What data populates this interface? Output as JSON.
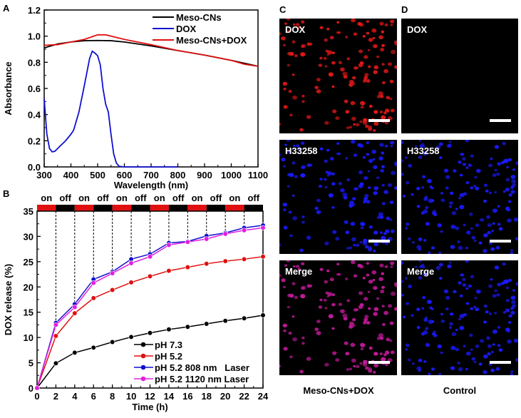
{
  "chart_data": [
    {
      "panel": "A",
      "type": "line",
      "xlabel": "Wavelength (nm)",
      "ylabel": "Absorbance",
      "xlim": [
        300,
        1100
      ],
      "ylim": [
        0,
        1.2
      ],
      "xticks": [
        300,
        400,
        500,
        600,
        700,
        800,
        900,
        1000,
        1100
      ],
      "yticks": [
        0.0,
        0.2,
        0.4,
        0.6,
        0.8,
        1.0,
        1.2
      ],
      "legend": "top-right",
      "series": [
        {
          "name": "Meso-CNs",
          "color": "#000000",
          "x": [
            300,
            350,
            400,
            450,
            500,
            550,
            600,
            700,
            800,
            900,
            1000,
            1100
          ],
          "y": [
            0.91,
            0.94,
            0.955,
            0.965,
            0.967,
            0.965,
            0.955,
            0.925,
            0.89,
            0.855,
            0.815,
            0.77
          ]
        },
        {
          "name": "DOX",
          "color": "#1010d0",
          "x": [
            300,
            310,
            320,
            330,
            340,
            360,
            380,
            400,
            410,
            430,
            450,
            470,
            480,
            490,
            500,
            510,
            520,
            530,
            540,
            550,
            560,
            570,
            580,
            600,
            700,
            800
          ],
          "y": [
            0.52,
            0.25,
            0.14,
            0.115,
            0.12,
            0.16,
            0.2,
            0.25,
            0.28,
            0.42,
            0.62,
            0.83,
            0.885,
            0.87,
            0.85,
            0.78,
            0.6,
            0.48,
            0.42,
            0.25,
            0.1,
            0.03,
            0.005,
            0,
            0,
            0
          ]
        },
        {
          "name": "Meso-CNs+DOX",
          "color": "#e01010",
          "x": [
            300,
            350,
            400,
            450,
            500,
            530,
            550,
            600,
            700,
            800,
            900,
            1000,
            1050,
            1100
          ],
          "y": [
            0.93,
            0.935,
            0.955,
            0.975,
            1.01,
            1.01,
            1.0,
            0.975,
            0.935,
            0.89,
            0.855,
            0.815,
            0.785,
            0.77
          ]
        }
      ]
    },
    {
      "panel": "B",
      "type": "line",
      "xlabel": "Time (h)",
      "ylabel": "DOX release (%)",
      "xlim": [
        0,
        24
      ],
      "ylim": [
        0,
        35
      ],
      "xticks": [
        0,
        2,
        4,
        6,
        8,
        10,
        12,
        14,
        16,
        18,
        20,
        22,
        24
      ],
      "yticks": [
        0,
        5,
        10,
        15,
        20,
        25,
        30,
        35
      ],
      "legend": "bottom-right",
      "laser_states": [
        "on",
        "off",
        "on",
        "off",
        "on",
        "off",
        "on",
        "off",
        "on",
        "off",
        "on",
        "off"
      ],
      "laser_colors": {
        "on": "#e01010",
        "off": "#000000"
      },
      "x": [
        0,
        2,
        4,
        6,
        8,
        10,
        12,
        14,
        16,
        18,
        20,
        22,
        24
      ],
      "series": [
        {
          "name": "pH 7.3",
          "color": "#000000",
          "values": [
            0,
            4.9,
            7.0,
            8.0,
            9.1,
            10.1,
            10.9,
            11.6,
            12.1,
            12.7,
            13.3,
            13.8,
            14.4
          ]
        },
        {
          "name": "pH 5.2",
          "color": "#e01010",
          "values": [
            0,
            10.3,
            14.8,
            17.8,
            19.4,
            20.9,
            22.1,
            23.2,
            23.9,
            24.6,
            25.1,
            25.5,
            26.0
          ]
        },
        {
          "name": "pH 5.2 808 nm   Laser",
          "color": "#1010d0",
          "values": [
            0,
            12.9,
            16.6,
            21.5,
            23.0,
            25.5,
            26.5,
            28.7,
            29.0,
            30.1,
            30.7,
            31.7,
            32.2
          ]
        },
        {
          "name": "pH 5.2 1120 nm Laser",
          "color": "#e020e0",
          "values": [
            0,
            12.5,
            16.0,
            20.8,
            22.7,
            24.7,
            26.0,
            28.3,
            28.9,
            29.5,
            30.5,
            31.2,
            31.7
          ]
        }
      ]
    }
  ],
  "panels": {
    "A": "A",
    "B": "B",
    "C": "C",
    "D": "D"
  },
  "images": {
    "C": {
      "caption": "Meso-CNs+DOX",
      "rows": [
        "DOX",
        "H33258",
        "Merge"
      ]
    },
    "D": {
      "caption": "Control",
      "rows": [
        "DOX",
        "H33258",
        "Merge"
      ]
    }
  }
}
